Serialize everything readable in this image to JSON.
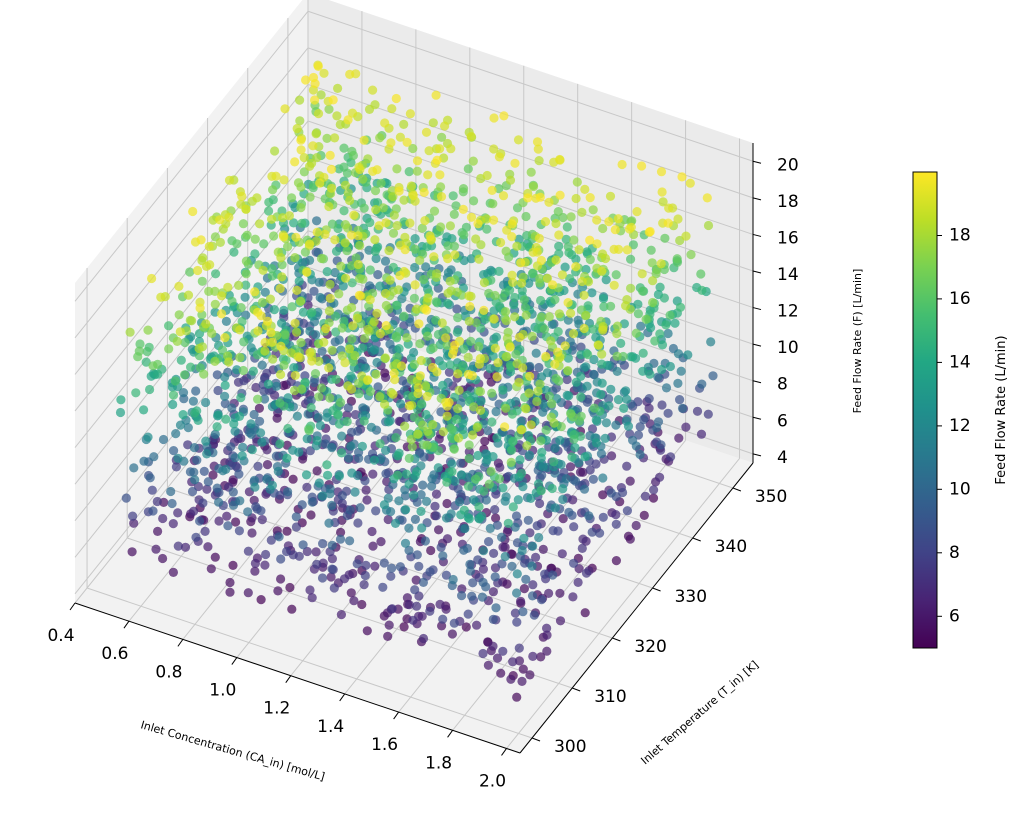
{
  "chart_data": {
    "type": "scatter",
    "projection": "3d",
    "title": "",
    "xlabel": "Inlet Concentration (CA_in) [mol/L]",
    "ylabel": "Inlet Temperature (T_in) [K]",
    "zlabel": "Feed Flow Rate (F) [L/min]",
    "xlim": [
      0.4,
      2.05
    ],
    "ylim": [
      297,
      355
    ],
    "zlim": [
      3.5,
      21
    ],
    "xticks": [
      "0.4",
      "0.6",
      "0.8",
      "1.0",
      "1.2",
      "1.4",
      "1.6",
      "1.8",
      "2.0"
    ],
    "yticks": [
      "300",
      "310",
      "320",
      "330",
      "340",
      "350"
    ],
    "zticks": [
      "4",
      "6",
      "8",
      "10",
      "12",
      "14",
      "16",
      "18",
      "20"
    ],
    "grid": true,
    "colormap": "viridis",
    "color_by": "Feed Flow Rate",
    "colorbar": {
      "label": "Feed Flow Rate (L/min)",
      "ticks": [
        "6",
        "8",
        "10",
        "12",
        "14",
        "16",
        "18"
      ],
      "range": [
        5,
        20
      ]
    },
    "point_count": 3000,
    "distribution": {
      "x": {
        "kind": "uniform",
        "range": [
          0.5,
          2.0
        ]
      },
      "y": {
        "kind": "uniform",
        "range": [
          300,
          350
        ]
      },
      "z": {
        "kind": "uniform",
        "range": [
          5,
          20
        ]
      }
    },
    "marker_alpha": 0.7
  }
}
